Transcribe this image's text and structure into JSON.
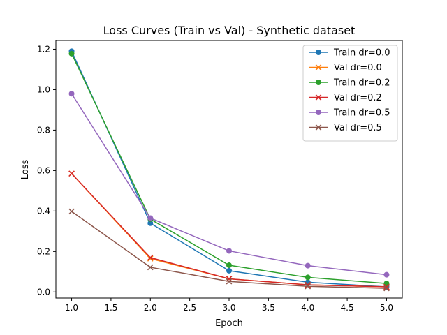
{
  "chart_data": {
    "type": "line",
    "title": "Loss Curves (Train vs Val) - Synthetic dataset",
    "xlabel": "Epoch",
    "ylabel": "Loss",
    "xlim": [
      0.8,
      5.2
    ],
    "ylim": [
      -0.03,
      1.243
    ],
    "xticks": [
      1.0,
      1.5,
      2.0,
      2.5,
      3.0,
      3.5,
      4.0,
      4.5,
      5.0
    ],
    "xtick_labels": [
      "1.0",
      "1.5",
      "2.0",
      "2.5",
      "3.0",
      "3.5",
      "4.0",
      "4.5",
      "5.0"
    ],
    "yticks": [
      0.0,
      0.2,
      0.4,
      0.6,
      0.8,
      1.0,
      1.2
    ],
    "ytick_labels": [
      "0.0",
      "0.2",
      "0.4",
      "0.6",
      "0.8",
      "1.0",
      "1.2"
    ],
    "grid": false,
    "legend_position": "top-right",
    "x": [
      1,
      2,
      3,
      4,
      5
    ],
    "series": [
      {
        "name": "Train dr=0.0",
        "color": "#1f77b4",
        "marker": "o",
        "values": [
          1.19,
          0.34,
          0.105,
          0.048,
          0.025
        ]
      },
      {
        "name": "Val dr=0.0",
        "color": "#ff7f0e",
        "marker": "x",
        "values": [
          0.585,
          0.165,
          0.065,
          0.035,
          0.025
        ]
      },
      {
        "name": "Train dr=0.2",
        "color": "#2ca02c",
        "marker": "o",
        "values": [
          1.178,
          0.36,
          0.132,
          0.072,
          0.042
        ]
      },
      {
        "name": "Val dr=0.2",
        "color": "#d62728",
        "marker": "x",
        "values": [
          0.585,
          0.17,
          0.065,
          0.035,
          0.025
        ]
      },
      {
        "name": "Train dr=0.5",
        "color": "#9467bd",
        "marker": "o",
        "values": [
          0.98,
          0.365,
          0.203,
          0.13,
          0.085
        ]
      },
      {
        "name": "Val dr=0.5",
        "color": "#8c564b",
        "marker": "x",
        "values": [
          0.398,
          0.122,
          0.052,
          0.028,
          0.018
        ]
      }
    ]
  }
}
